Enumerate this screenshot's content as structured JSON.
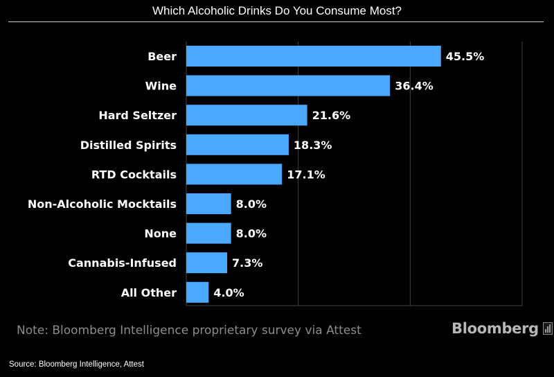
{
  "chart_data": {
    "type": "bar",
    "orientation": "horizontal",
    "title": "Which Alcoholic Drinks Do You Consume Most?",
    "categories": [
      "Beer",
      "Wine",
      "Hard Seltzer",
      "Distilled Spirits",
      "RTD Cocktails",
      "Non-Alcoholic Mocktails",
      "None",
      "Cannabis-Infused",
      "All Other"
    ],
    "values": [
      45.5,
      36.4,
      21.6,
      18.3,
      17.1,
      8.0,
      8.0,
      7.3,
      4.0
    ],
    "data_labels": [
      "45.5%",
      "36.4%",
      "21.6%",
      "18.3%",
      "17.1%",
      "8.0%",
      "8.0%",
      "7.3%",
      "4.0%"
    ],
    "xlim": [
      0,
      60
    ],
    "grid_values": [
      20,
      40,
      60
    ],
    "xlabel": "",
    "ylabel": "",
    "bar_color": "#4aa9ff",
    "grid_color": "#444444"
  },
  "note": "Note: Bloomberg Intelligence proprietary survey via Attest",
  "logo": "Bloomberg",
  "source": "Source: Bloomberg Intelligence, Attest"
}
